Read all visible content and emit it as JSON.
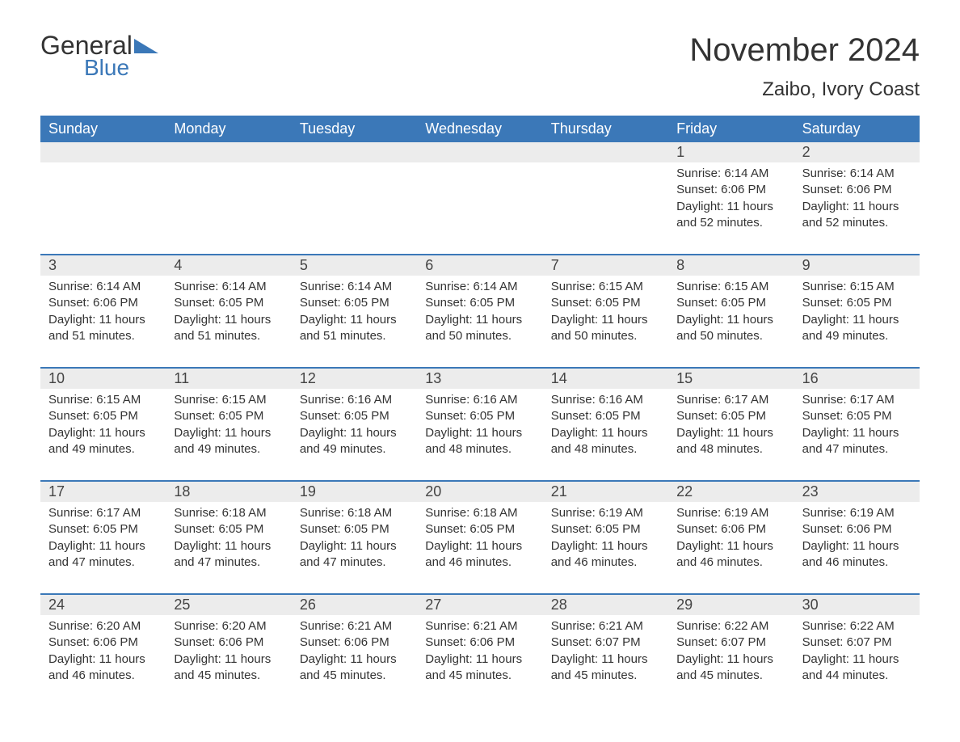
{
  "logo": {
    "text1": "General",
    "text2": "Blue"
  },
  "title": "November 2024",
  "location": "Zaibo, Ivory Coast",
  "colors": {
    "accent": "#3b78b8",
    "header_text": "#ffffff",
    "daynum_bg": "#ececec",
    "body_text": "#333333",
    "background": "#ffffff"
  },
  "day_header_fontsize": 18,
  "daynum_fontsize": 18,
  "cell_fontsize": 15,
  "day_labels": [
    "Sunday",
    "Monday",
    "Tuesday",
    "Wednesday",
    "Thursday",
    "Friday",
    "Saturday"
  ],
  "weeks": [
    {
      "nums": [
        "",
        "",
        "",
        "",
        "",
        "1",
        "2"
      ],
      "cells": [
        null,
        null,
        null,
        null,
        null,
        {
          "sunrise": "Sunrise: 6:14 AM",
          "sunset": "Sunset: 6:06 PM",
          "day1": "Daylight: 11 hours",
          "day2": "and 52 minutes."
        },
        {
          "sunrise": "Sunrise: 6:14 AM",
          "sunset": "Sunset: 6:06 PM",
          "day1": "Daylight: 11 hours",
          "day2": "and 52 minutes."
        }
      ]
    },
    {
      "nums": [
        "3",
        "4",
        "5",
        "6",
        "7",
        "8",
        "9"
      ],
      "cells": [
        {
          "sunrise": "Sunrise: 6:14 AM",
          "sunset": "Sunset: 6:06 PM",
          "day1": "Daylight: 11 hours",
          "day2": "and 51 minutes."
        },
        {
          "sunrise": "Sunrise: 6:14 AM",
          "sunset": "Sunset: 6:05 PM",
          "day1": "Daylight: 11 hours",
          "day2": "and 51 minutes."
        },
        {
          "sunrise": "Sunrise: 6:14 AM",
          "sunset": "Sunset: 6:05 PM",
          "day1": "Daylight: 11 hours",
          "day2": "and 51 minutes."
        },
        {
          "sunrise": "Sunrise: 6:14 AM",
          "sunset": "Sunset: 6:05 PM",
          "day1": "Daylight: 11 hours",
          "day2": "and 50 minutes."
        },
        {
          "sunrise": "Sunrise: 6:15 AM",
          "sunset": "Sunset: 6:05 PM",
          "day1": "Daylight: 11 hours",
          "day2": "and 50 minutes."
        },
        {
          "sunrise": "Sunrise: 6:15 AM",
          "sunset": "Sunset: 6:05 PM",
          "day1": "Daylight: 11 hours",
          "day2": "and 50 minutes."
        },
        {
          "sunrise": "Sunrise: 6:15 AM",
          "sunset": "Sunset: 6:05 PM",
          "day1": "Daylight: 11 hours",
          "day2": "and 49 minutes."
        }
      ]
    },
    {
      "nums": [
        "10",
        "11",
        "12",
        "13",
        "14",
        "15",
        "16"
      ],
      "cells": [
        {
          "sunrise": "Sunrise: 6:15 AM",
          "sunset": "Sunset: 6:05 PM",
          "day1": "Daylight: 11 hours",
          "day2": "and 49 minutes."
        },
        {
          "sunrise": "Sunrise: 6:15 AM",
          "sunset": "Sunset: 6:05 PM",
          "day1": "Daylight: 11 hours",
          "day2": "and 49 minutes."
        },
        {
          "sunrise": "Sunrise: 6:16 AM",
          "sunset": "Sunset: 6:05 PM",
          "day1": "Daylight: 11 hours",
          "day2": "and 49 minutes."
        },
        {
          "sunrise": "Sunrise: 6:16 AM",
          "sunset": "Sunset: 6:05 PM",
          "day1": "Daylight: 11 hours",
          "day2": "and 48 minutes."
        },
        {
          "sunrise": "Sunrise: 6:16 AM",
          "sunset": "Sunset: 6:05 PM",
          "day1": "Daylight: 11 hours",
          "day2": "and 48 minutes."
        },
        {
          "sunrise": "Sunrise: 6:17 AM",
          "sunset": "Sunset: 6:05 PM",
          "day1": "Daylight: 11 hours",
          "day2": "and 48 minutes."
        },
        {
          "sunrise": "Sunrise: 6:17 AM",
          "sunset": "Sunset: 6:05 PM",
          "day1": "Daylight: 11 hours",
          "day2": "and 47 minutes."
        }
      ]
    },
    {
      "nums": [
        "17",
        "18",
        "19",
        "20",
        "21",
        "22",
        "23"
      ],
      "cells": [
        {
          "sunrise": "Sunrise: 6:17 AM",
          "sunset": "Sunset: 6:05 PM",
          "day1": "Daylight: 11 hours",
          "day2": "and 47 minutes."
        },
        {
          "sunrise": "Sunrise: 6:18 AM",
          "sunset": "Sunset: 6:05 PM",
          "day1": "Daylight: 11 hours",
          "day2": "and 47 minutes."
        },
        {
          "sunrise": "Sunrise: 6:18 AM",
          "sunset": "Sunset: 6:05 PM",
          "day1": "Daylight: 11 hours",
          "day2": "and 47 minutes."
        },
        {
          "sunrise": "Sunrise: 6:18 AM",
          "sunset": "Sunset: 6:05 PM",
          "day1": "Daylight: 11 hours",
          "day2": "and 46 minutes."
        },
        {
          "sunrise": "Sunrise: 6:19 AM",
          "sunset": "Sunset: 6:05 PM",
          "day1": "Daylight: 11 hours",
          "day2": "and 46 minutes."
        },
        {
          "sunrise": "Sunrise: 6:19 AM",
          "sunset": "Sunset: 6:06 PM",
          "day1": "Daylight: 11 hours",
          "day2": "and 46 minutes."
        },
        {
          "sunrise": "Sunrise: 6:19 AM",
          "sunset": "Sunset: 6:06 PM",
          "day1": "Daylight: 11 hours",
          "day2": "and 46 minutes."
        }
      ]
    },
    {
      "nums": [
        "24",
        "25",
        "26",
        "27",
        "28",
        "29",
        "30"
      ],
      "cells": [
        {
          "sunrise": "Sunrise: 6:20 AM",
          "sunset": "Sunset: 6:06 PM",
          "day1": "Daylight: 11 hours",
          "day2": "and 46 minutes."
        },
        {
          "sunrise": "Sunrise: 6:20 AM",
          "sunset": "Sunset: 6:06 PM",
          "day1": "Daylight: 11 hours",
          "day2": "and 45 minutes."
        },
        {
          "sunrise": "Sunrise: 6:21 AM",
          "sunset": "Sunset: 6:06 PM",
          "day1": "Daylight: 11 hours",
          "day2": "and 45 minutes."
        },
        {
          "sunrise": "Sunrise: 6:21 AM",
          "sunset": "Sunset: 6:06 PM",
          "day1": "Daylight: 11 hours",
          "day2": "and 45 minutes."
        },
        {
          "sunrise": "Sunrise: 6:21 AM",
          "sunset": "Sunset: 6:07 PM",
          "day1": "Daylight: 11 hours",
          "day2": "and 45 minutes."
        },
        {
          "sunrise": "Sunrise: 6:22 AM",
          "sunset": "Sunset: 6:07 PM",
          "day1": "Daylight: 11 hours",
          "day2": "and 45 minutes."
        },
        {
          "sunrise": "Sunrise: 6:22 AM",
          "sunset": "Sunset: 6:07 PM",
          "day1": "Daylight: 11 hours",
          "day2": "and 44 minutes."
        }
      ]
    }
  ]
}
